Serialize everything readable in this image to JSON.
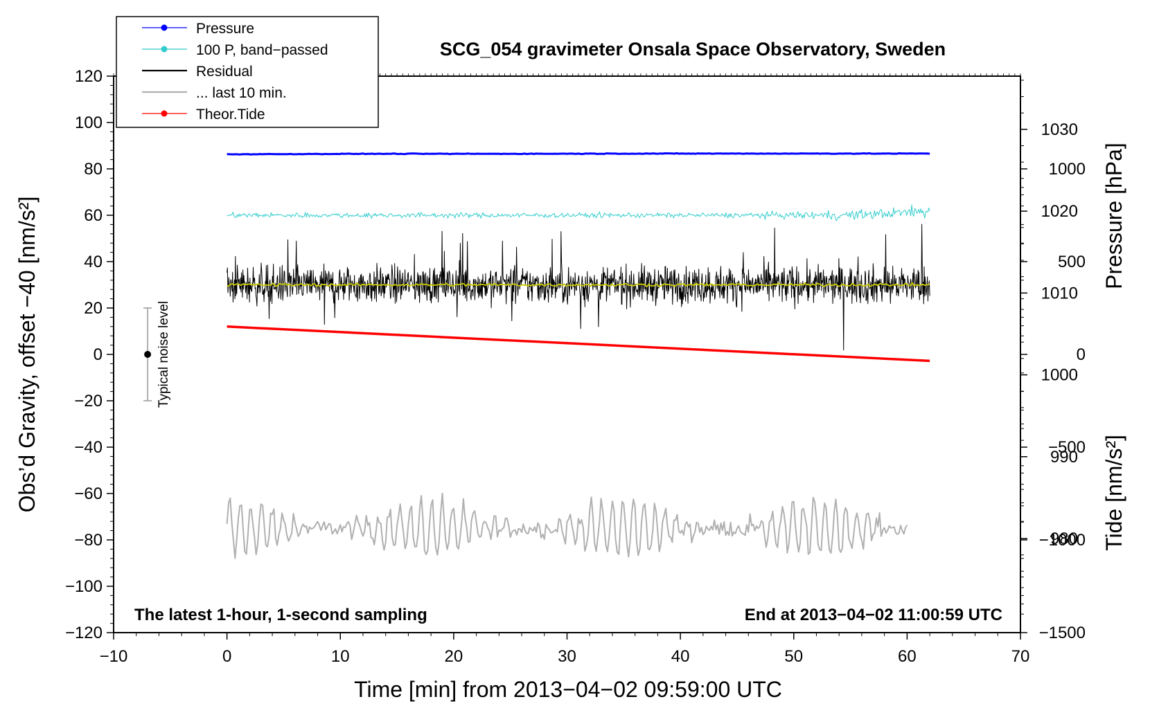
{
  "chart_data": {
    "type": "line",
    "title": "SCG_054 gravimeter Onsala Space Observatory, Sweden",
    "xlabel": "Time [min] from 2013−04−02 09:59:00 UTC",
    "ylabel": "Obs’d Gravity, offset −40 [nm/s²]",
    "y2_pressure_label": "Pressure [hPa]",
    "y2_tide_label": "Tide [nm/s²]",
    "xlim": [
      -10,
      70
    ],
    "ylim": [
      -120,
      120
    ],
    "pressure_lim": [
      968.5,
      1036.5
    ],
    "tide_lim": [
      -1500,
      1500
    ],
    "x_ticks": [
      "−10",
      "0",
      "10",
      "20",
      "30",
      "40",
      "50",
      "60",
      "70"
    ],
    "y_ticks": [
      "120",
      "100",
      "80",
      "60",
      "40",
      "20",
      "0",
      "−20",
      "−40",
      "−60",
      "−80",
      "−100",
      "−120"
    ],
    "pressure_ticks": [
      "1030",
      "1020",
      "1010",
      "1000",
      "990",
      "980"
    ],
    "tide_ticks": [
      "1000",
      "500",
      "0",
      "−500",
      "−1000",
      "−1500"
    ],
    "grid": false,
    "legend_position": "top-left",
    "legend": [
      "Pressure",
      "100 P, band−passed",
      "Residual",
      "... last 10 min.",
      "Theor.Tide"
    ],
    "series": [
      {
        "name": "Pressure",
        "axis": "left",
        "color": "#0000ff",
        "x_range": [
          0,
          62
        ],
        "values": [
          86.3,
          86.5,
          86.5,
          86.6,
          86.6,
          86.6
        ]
      },
      {
        "name": "100 P, band−passed",
        "axis": "left",
        "color": "#33cccc",
        "x_range": [
          0,
          62
        ],
        "center": 60,
        "amplitude": 3
      },
      {
        "name": "Residual",
        "axis": "left",
        "color": "#000000",
        "x_range": [
          0,
          62
        ],
        "center": 30,
        "amplitude": 14
      },
      {
        "name": "... last 10 min.",
        "axis": "left",
        "color": "#b0b0b0",
        "x_range": [
          0,
          60
        ],
        "center": -75,
        "amplitude": 12
      },
      {
        "name": "Theor.Tide",
        "axis": "tide",
        "color": "#ff0000",
        "x": [
          0,
          62
        ],
        "values": [
          150,
          -35
        ]
      },
      {
        "name": "Residual smoothed",
        "axis": "left",
        "color": "#cccc00",
        "x_range": [
          0,
          62
        ],
        "center": 30,
        "amplitude": 1
      }
    ],
    "noise_bar": {
      "label": "Typical noise level",
      "x": -7,
      "center": 0,
      "low": -20,
      "high": 20
    },
    "annotations": {
      "left": "The latest 1-hour, 1-second sampling",
      "right": "End at 2013−04−02 11:00:59 UTC"
    }
  },
  "colors": {
    "pressure": "#0000ff",
    "bandpassed": "#33cccc",
    "residual": "#000000",
    "last10": "#b0b0b0",
    "tide": "#ff0000",
    "smoothed": "#cccc00"
  }
}
